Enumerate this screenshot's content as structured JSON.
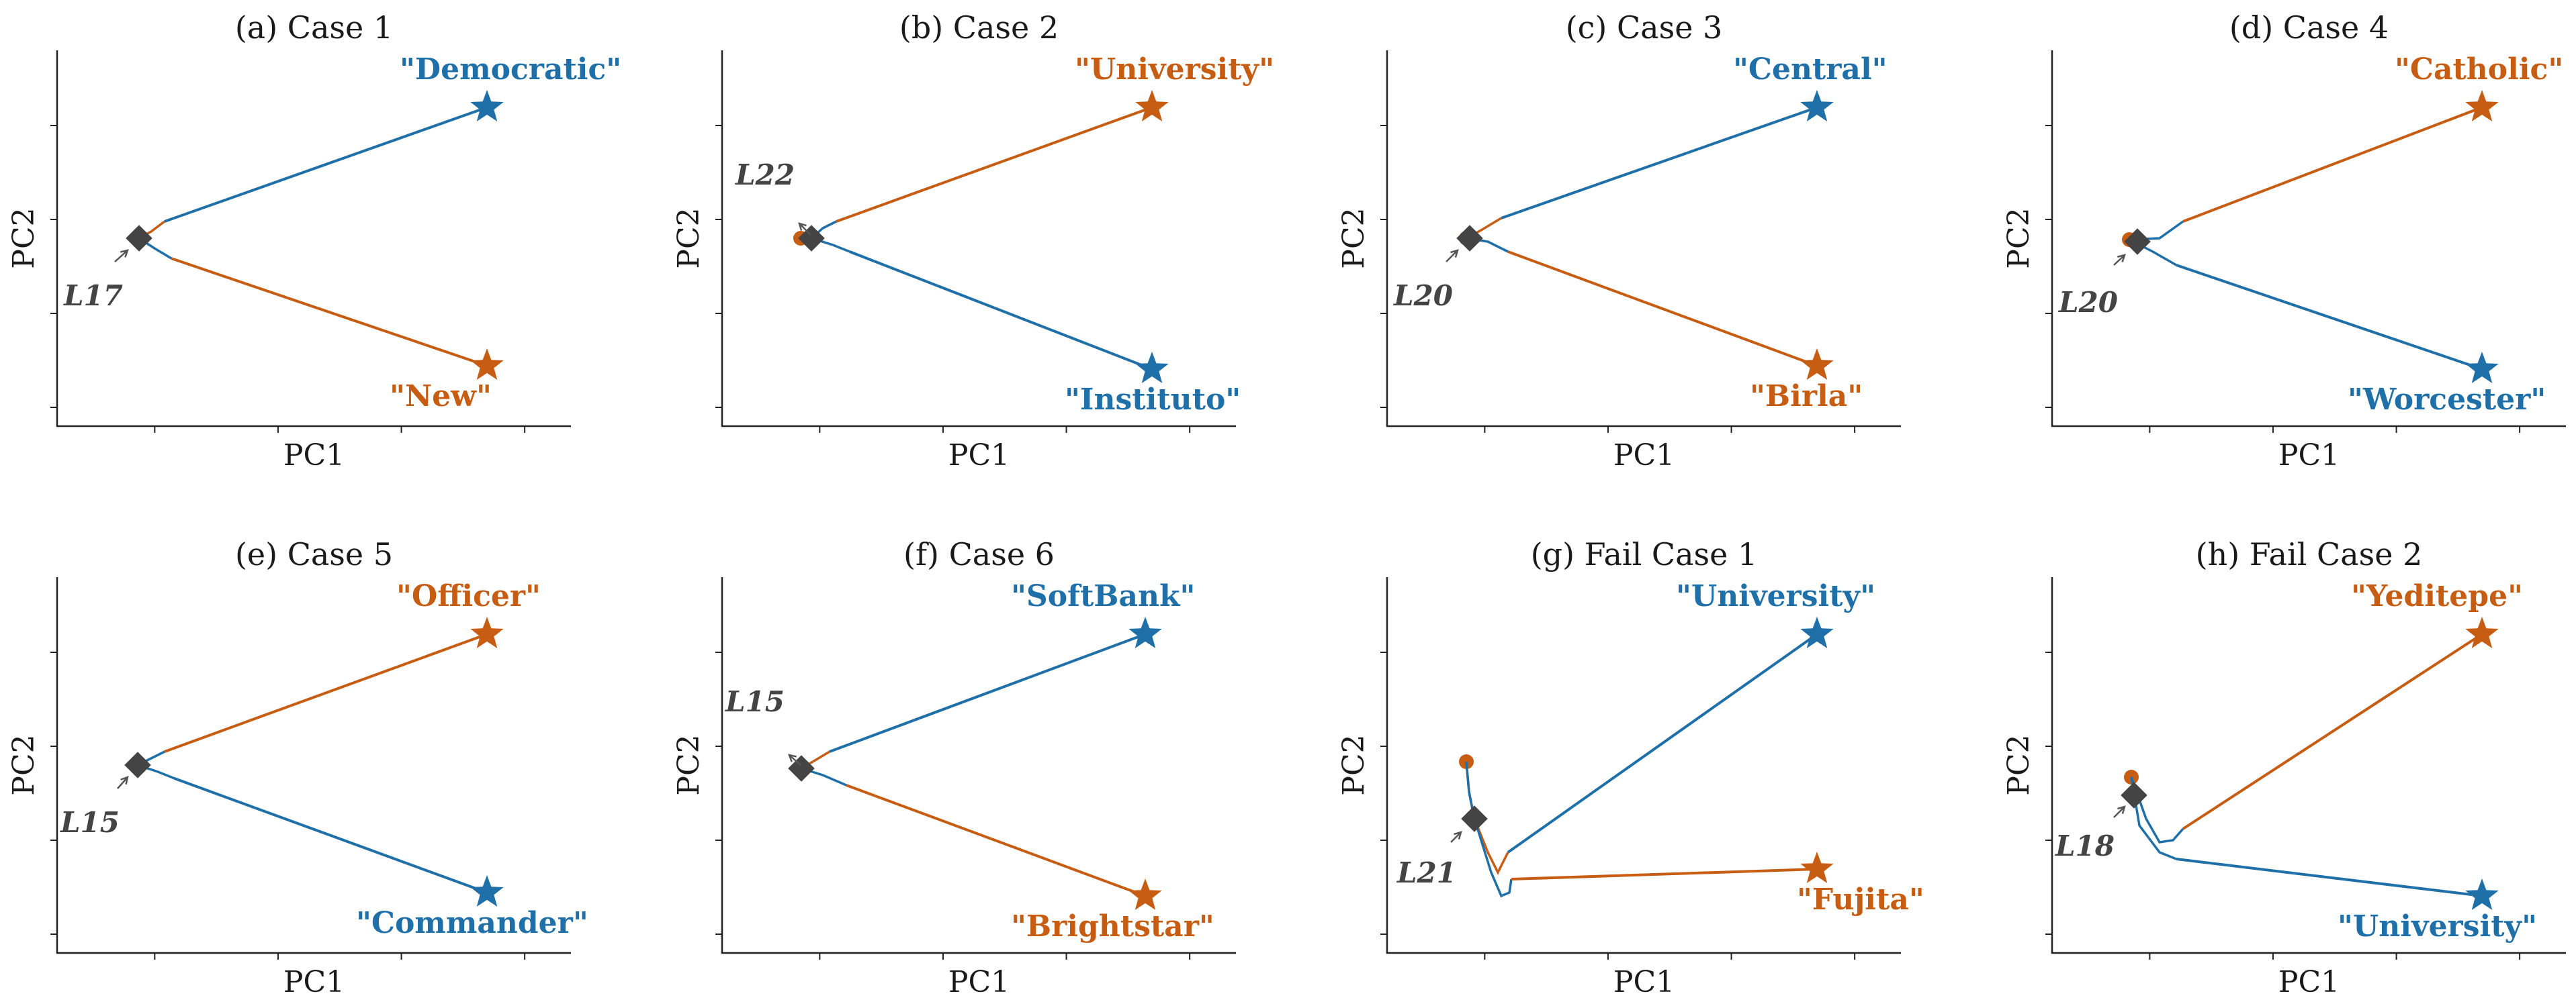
{
  "colors": {
    "blue": "#1f6fa8",
    "orange": "#c65d12",
    "diamond": "#444444",
    "axis": "#222222"
  },
  "chart_data": [
    {
      "type": "line",
      "title": "(a) Case 1",
      "xlabel": "PC1",
      "ylabel": "PC2",
      "layer": "L17",
      "top": {
        "word": "\"Democratic\"",
        "color": "blue"
      },
      "bottom": {
        "word": "\"New\"",
        "color": "orange"
      }
    },
    {
      "type": "line",
      "title": "(b) Case 2",
      "xlabel": "PC1",
      "ylabel": "PC2",
      "layer": "L22",
      "top": {
        "word": "\"University\"",
        "color": "orange"
      },
      "bottom": {
        "word": "\"Instituto\"",
        "color": "blue"
      }
    },
    {
      "type": "line",
      "title": "(c) Case 3",
      "xlabel": "PC1",
      "ylabel": "PC2",
      "layer": "L20",
      "top": {
        "word": "\"Central\"",
        "color": "blue"
      },
      "bottom": {
        "word": "\"Birla\"",
        "color": "orange"
      }
    },
    {
      "type": "line",
      "title": "(d) Case 4",
      "xlabel": "PC1",
      "ylabel": "PC2",
      "layer": "L20",
      "top": {
        "word": "\"Catholic\"",
        "color": "orange"
      },
      "bottom": {
        "word": "\"Worcester\"",
        "color": "blue"
      }
    },
    {
      "type": "line",
      "title": "(e) Case 5",
      "xlabel": "PC1",
      "ylabel": "PC2",
      "layer": "L15",
      "top": {
        "word": "\"Officer\"",
        "color": "orange"
      },
      "bottom": {
        "word": "\"Commander\"",
        "color": "blue"
      }
    },
    {
      "type": "line",
      "title": "(f) Case 6",
      "xlabel": "PC1",
      "ylabel": "PC2",
      "layer": "L15",
      "top": {
        "word": "\"SoftBank\"",
        "color": "blue"
      },
      "bottom": {
        "word": "\"Brightstar\"",
        "color": "orange"
      }
    },
    {
      "type": "line",
      "title": "(g) Fail Case 1",
      "xlabel": "PC1",
      "ylabel": "PC2",
      "layer": "L21",
      "top": {
        "word": "\"University\"",
        "color": "blue"
      },
      "bottom": {
        "word": "\"Fujita\"",
        "color": "orange"
      }
    },
    {
      "type": "line",
      "title": "(h) Fail Case 2",
      "xlabel": "PC1",
      "ylabel": "PC2",
      "layer": "L18",
      "top": {
        "word": "\"Yeditepe\"",
        "color": "orange"
      },
      "bottom": {
        "word": "\"University\"",
        "color": "blue"
      }
    }
  ]
}
